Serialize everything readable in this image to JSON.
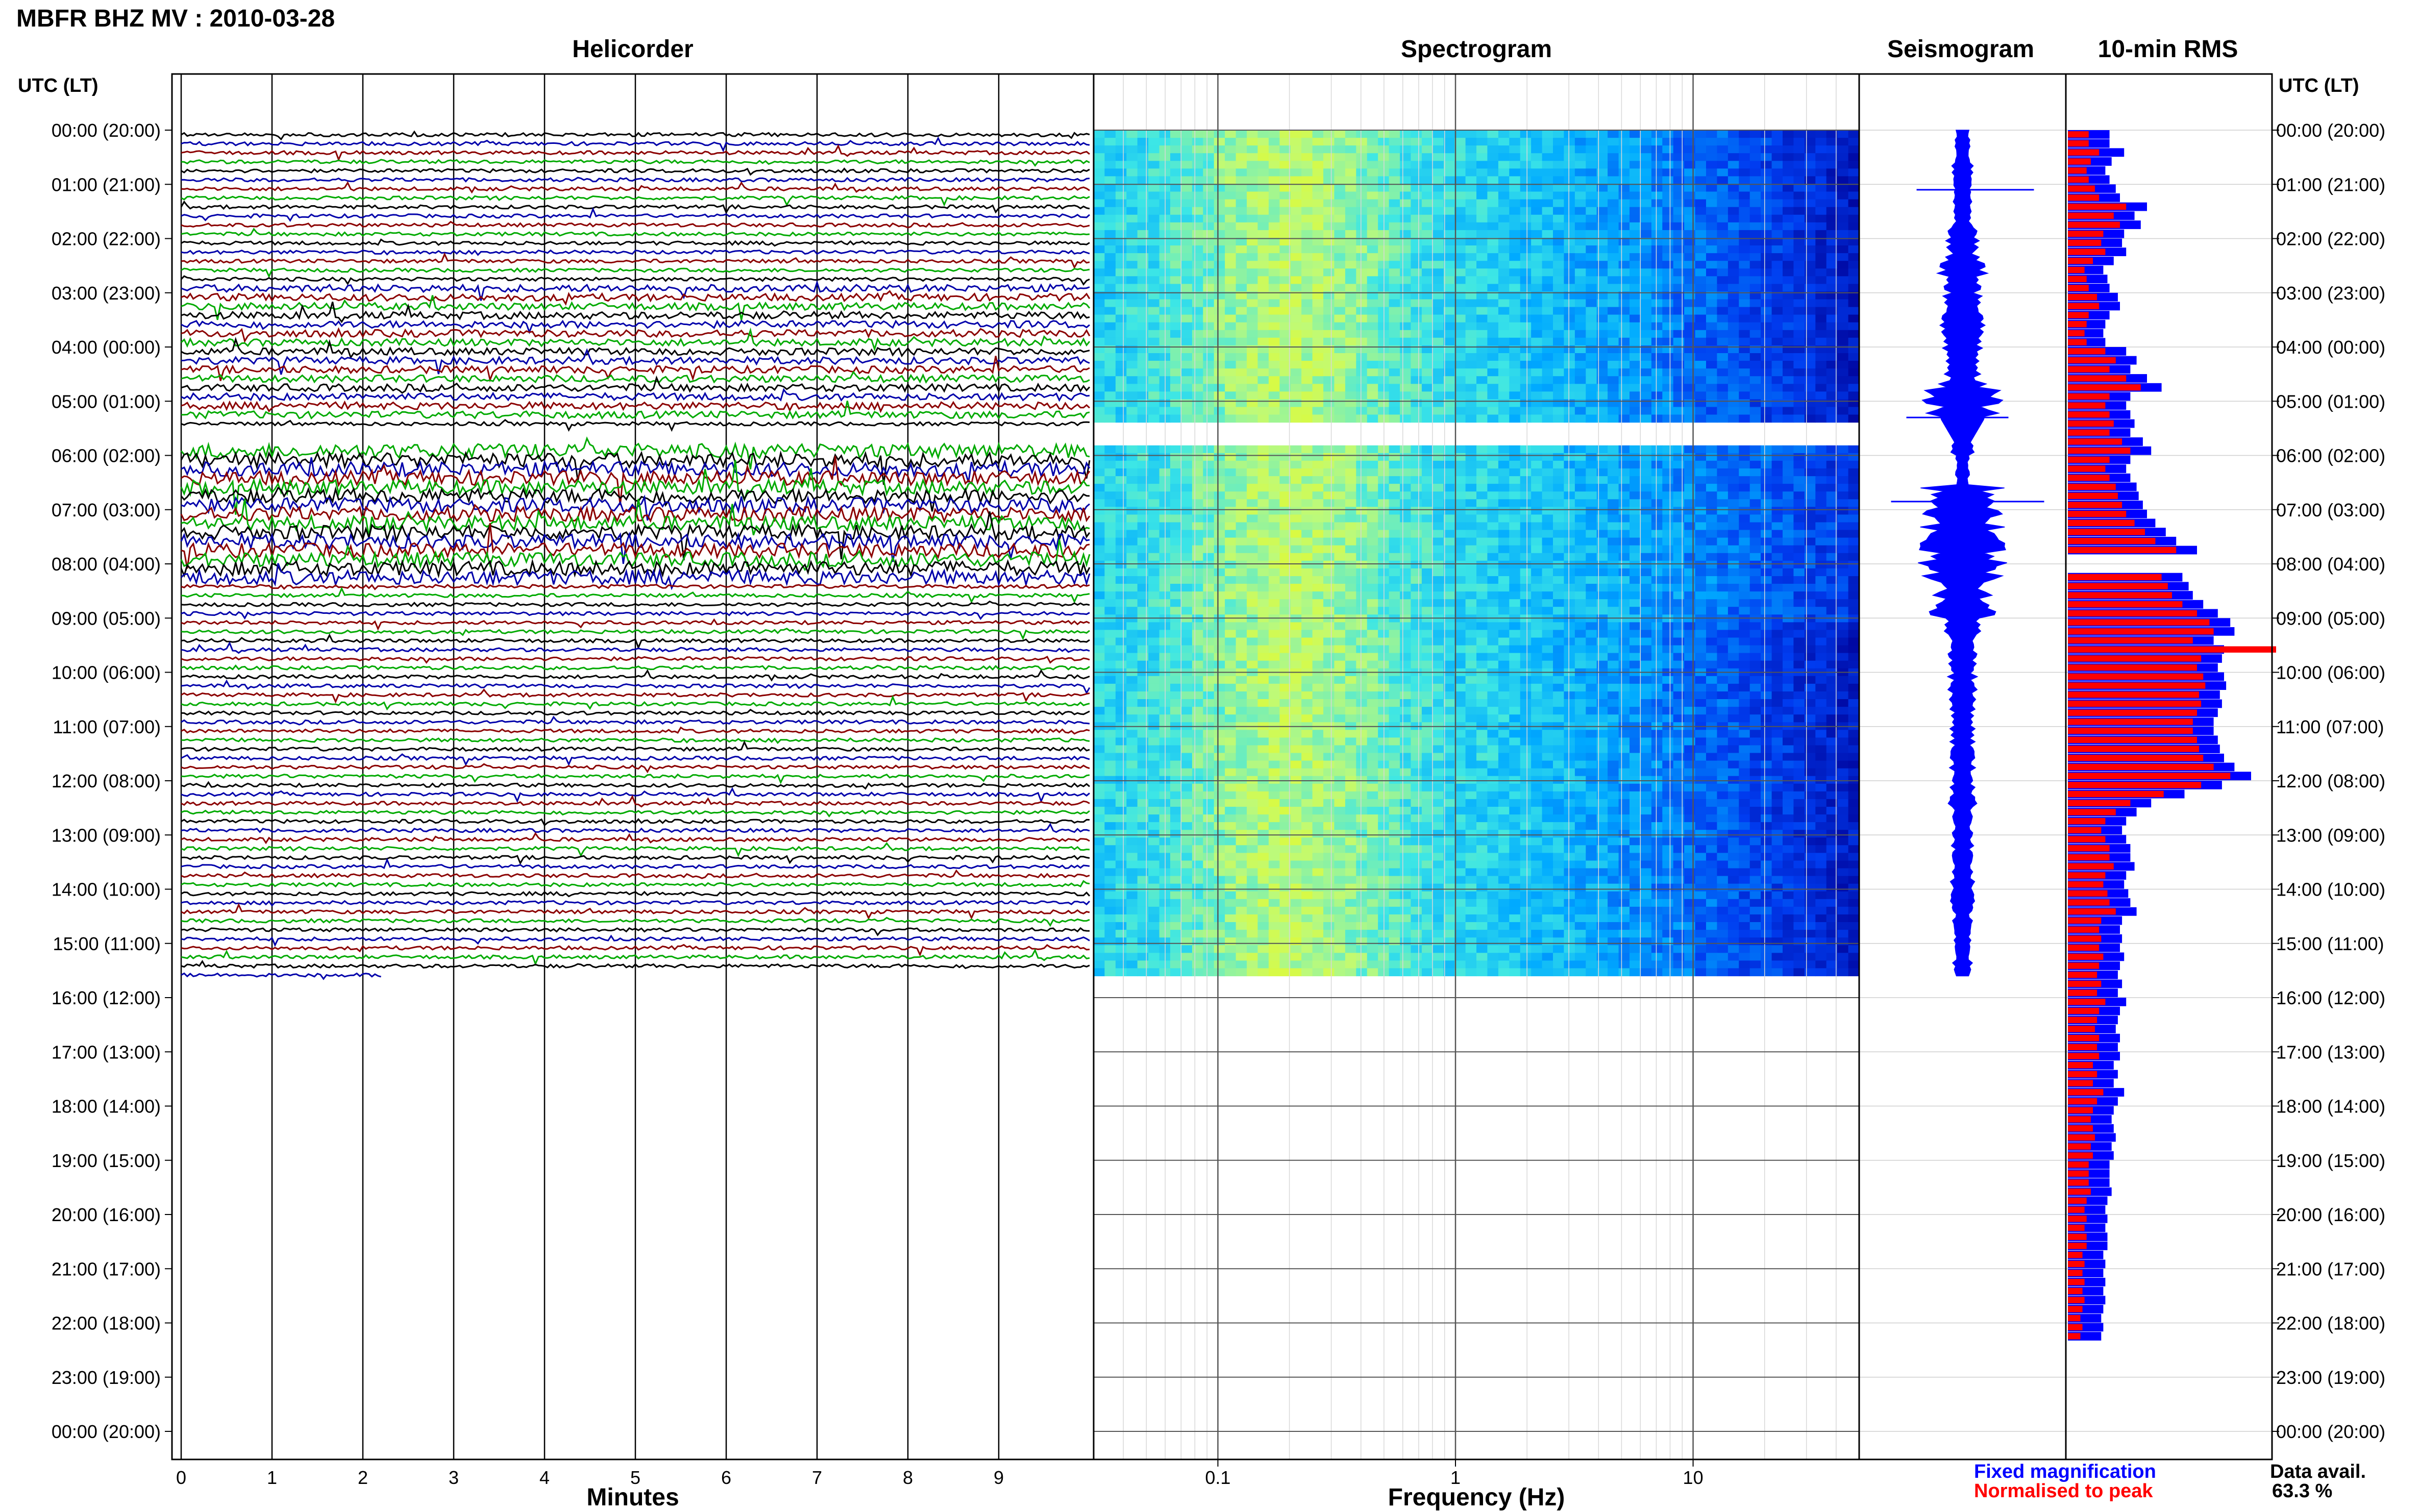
{
  "header": {
    "title": "MBFR BHZ MV : 2010-03-28"
  },
  "chart_data": {
    "type": "seismic_dayplot",
    "panels": [
      "Helicorder",
      "Spectrogram",
      "Seismogram",
      "10-min RMS"
    ],
    "time_axis": {
      "label_left": "UTC (LT)",
      "label_right": "UTC (LT)",
      "labels": [
        "00:00 (20:00)",
        "01:00 (21:00)",
        "02:00 (22:00)",
        "03:00 (23:00)",
        "04:00 (00:00)",
        "05:00 (01:00)",
        "06:00 (02:00)",
        "07:00 (03:00)",
        "08:00 (04:00)",
        "09:00 (05:00)",
        "10:00 (06:00)",
        "11:00 (07:00)",
        "12:00 (08:00)",
        "13:00 (09:00)",
        "14:00 (10:00)",
        "15:00 (11:00)",
        "16:00 (12:00)",
        "17:00 (13:00)",
        "18:00 (14:00)",
        "19:00 (15:00)",
        "20:00 (16:00)",
        "21:00 (17:00)",
        "22:00 (18:00)",
        "23:00 (19:00)",
        "00:00 (20:00)"
      ]
    },
    "helicorder": {
      "xlabel": "Minutes",
      "xticks": [
        "0",
        "1",
        "2",
        "3",
        "4",
        "5",
        "6",
        "7",
        "8",
        "9"
      ],
      "xlim": [
        0,
        10
      ],
      "trace_colors": [
        "#000000",
        "#0000aa",
        "#8b0000",
        "#00aa00"
      ],
      "data_end_hour": 15.6,
      "gap_hours": [
        5.35,
        5.7
      ]
    },
    "spectrogram": {
      "xlabel": "Frequency (Hz)",
      "scale": "log",
      "xticks": [
        "0.1",
        "1",
        "10"
      ],
      "xlim": [
        0.03,
        50
      ]
    },
    "seismogram": {
      "color": "#0000ff",
      "envelope": [
        0.12,
        0.2,
        0.15,
        0.3,
        0.5,
        0.4,
        0.5,
        0.45,
        0.8,
        0.2,
        0.1,
        0.9,
        1.0,
        0.95,
        0.7,
        0.35,
        0.28,
        0.25,
        0.22,
        0.22,
        0.25,
        0.2,
        0.18,
        0.2,
        0.15,
        0.15
      ]
    },
    "rms": {
      "title": "10-min RMS",
      "legend": [
        {
          "label": "Fixed magnification",
          "color": "#0000ff"
        },
        {
          "label": "Normalised to peak",
          "color": "#ff0000"
        }
      ],
      "data_availability_label": "Data avail.",
      "data_availability": "63.3 %",
      "fixed": [
        0.2,
        0.2,
        0.27,
        0.21,
        0.18,
        0.2,
        0.23,
        0.25,
        0.38,
        0.32,
        0.35,
        0.27,
        0.26,
        0.28,
        0.22,
        0.17,
        0.19,
        0.2,
        0.24,
        0.25,
        0.2,
        0.18,
        0.17,
        0.18,
        0.28,
        0.33,
        0.3,
        0.38,
        0.45,
        0.3,
        0.28,
        0.3,
        0.32,
        0.3,
        0.36,
        0.4,
        0.3,
        0.28,
        0.3,
        0.33,
        0.34,
        0.36,
        0.38,
        0.42,
        0.47,
        0.52,
        0.62,
        0.0,
        0.0,
        0.55,
        0.58,
        0.6,
        0.65,
        0.72,
        0.78,
        0.8,
        0.7,
        0.75,
        0.74,
        0.72,
        0.75,
        0.76,
        0.73,
        0.74,
        0.72,
        0.7,
        0.7,
        0.72,
        0.73,
        0.75,
        0.8,
        0.88,
        0.74,
        0.56,
        0.4,
        0.33,
        0.28,
        0.26,
        0.28,
        0.3,
        0.3,
        0.32,
        0.28,
        0.27,
        0.29,
        0.3,
        0.33,
        0.26,
        0.25,
        0.26,
        0.25,
        0.27,
        0.25,
        0.24,
        0.26,
        0.24,
        0.28,
        0.25,
        0.24,
        0.23,
        0.25,
        0.24,
        0.25,
        0.22,
        0.24,
        0.22,
        0.27,
        0.24,
        0.22,
        0.21,
        0.22,
        0.23,
        0.21,
        0.22,
        0.2,
        0.2,
        0.2,
        0.21,
        0.19,
        0.18,
        0.19,
        0.18,
        0.19,
        0.19,
        0.17,
        0.18,
        0.17,
        0.18,
        0.17,
        0.18,
        0.17,
        0.16,
        0.17,
        0.16
      ],
      "normalised": [
        0.1,
        0.1,
        0.15,
        0.11,
        0.09,
        0.1,
        0.13,
        0.15,
        0.28,
        0.22,
        0.25,
        0.17,
        0.16,
        0.18,
        0.12,
        0.08,
        0.09,
        0.1,
        0.14,
        0.15,
        0.1,
        0.09,
        0.08,
        0.09,
        0.18,
        0.23,
        0.2,
        0.28,
        0.35,
        0.2,
        0.18,
        0.2,
        0.22,
        0.2,
        0.26,
        0.3,
        0.2,
        0.18,
        0.2,
        0.23,
        0.24,
        0.26,
        0.28,
        0.32,
        0.37,
        0.42,
        0.52,
        0.0,
        0.0,
        0.45,
        0.48,
        0.5,
        0.55,
        0.62,
        0.68,
        0.7,
        0.6,
        1.0,
        0.64,
        0.62,
        0.65,
        0.66,
        0.63,
        0.64,
        0.62,
        0.6,
        0.6,
        0.62,
        0.63,
        0.65,
        0.7,
        0.78,
        0.64,
        0.46,
        0.3,
        0.23,
        0.18,
        0.16,
        0.18,
        0.2,
        0.2,
        0.22,
        0.18,
        0.17,
        0.19,
        0.2,
        0.23,
        0.16,
        0.15,
        0.16,
        0.15,
        0.17,
        0.15,
        0.14,
        0.16,
        0.14,
        0.18,
        0.15,
        0.14,
        0.13,
        0.15,
        0.14,
        0.15,
        0.12,
        0.14,
        0.12,
        0.17,
        0.14,
        0.12,
        0.11,
        0.12,
        0.13,
        0.11,
        0.12,
        0.1,
        0.1,
        0.1,
        0.11,
        0.09,
        0.08,
        0.09,
        0.08,
        0.09,
        0.09,
        0.07,
        0.08,
        0.07,
        0.08,
        0.07,
        0.08,
        0.07,
        0.06,
        0.07,
        0.06
      ]
    }
  }
}
